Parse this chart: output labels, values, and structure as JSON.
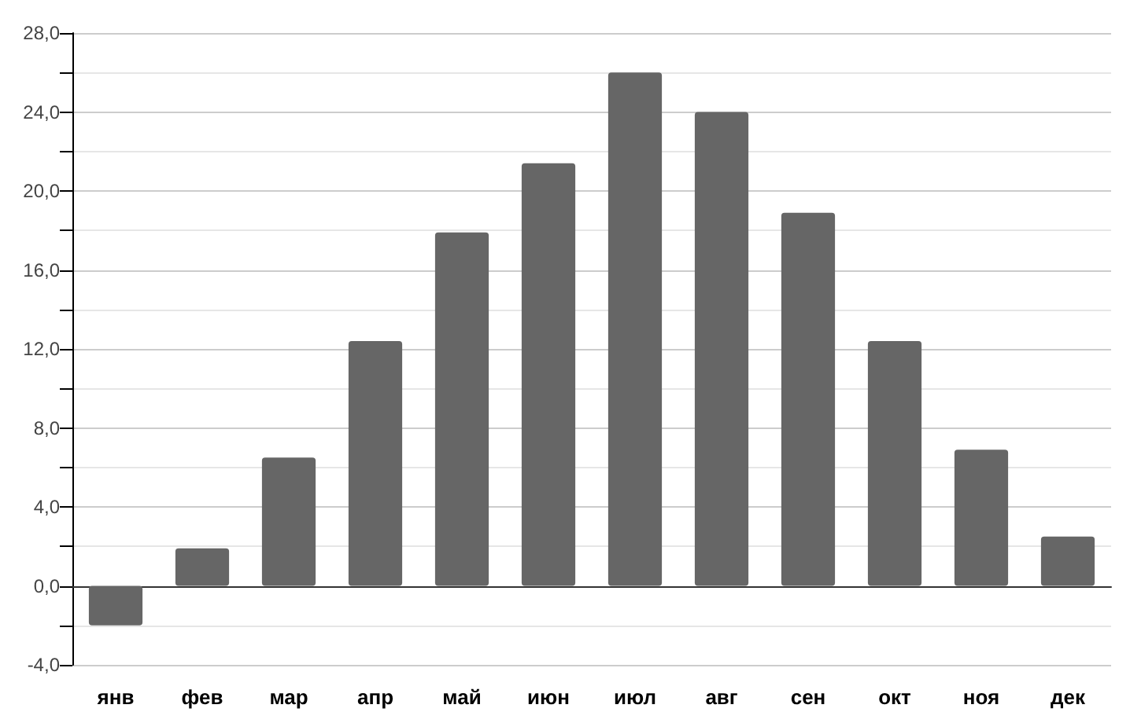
{
  "chart_data": {
    "type": "bar",
    "categories": [
      "янв",
      "фев",
      "мар",
      "апр",
      "май",
      "июн",
      "июл",
      "авг",
      "сен",
      "окт",
      "ноя",
      "дек"
    ],
    "values": [
      -2.0,
      1.9,
      6.5,
      12.4,
      17.9,
      21.4,
      26.0,
      24.0,
      18.9,
      12.4,
      6.9,
      2.5
    ],
    "color": "#666666",
    "ylim": [
      -4,
      28
    ],
    "yticks": [
      {
        "value": -4,
        "label": "-4,0"
      },
      {
        "value": -2,
        "label": null
      },
      {
        "value": 0,
        "label": "0,0"
      },
      {
        "value": 2,
        "label": null
      },
      {
        "value": 4,
        "label": "4,0"
      },
      {
        "value": 6,
        "label": null
      },
      {
        "value": 8,
        "label": "8,0"
      },
      {
        "value": 10,
        "label": null
      },
      {
        "value": 12,
        "label": "12,0"
      },
      {
        "value": 14,
        "label": null
      },
      {
        "value": 16,
        "label": "16,0"
      },
      {
        "value": 18,
        "label": null
      },
      {
        "value": 20,
        "label": "20,0"
      },
      {
        "value": 22,
        "label": null
      },
      {
        "value": 24,
        "label": "24,0"
      },
      {
        "value": 26,
        "label": null
      },
      {
        "value": 28,
        "label": "28,0"
      }
    ],
    "grid": "y"
  }
}
